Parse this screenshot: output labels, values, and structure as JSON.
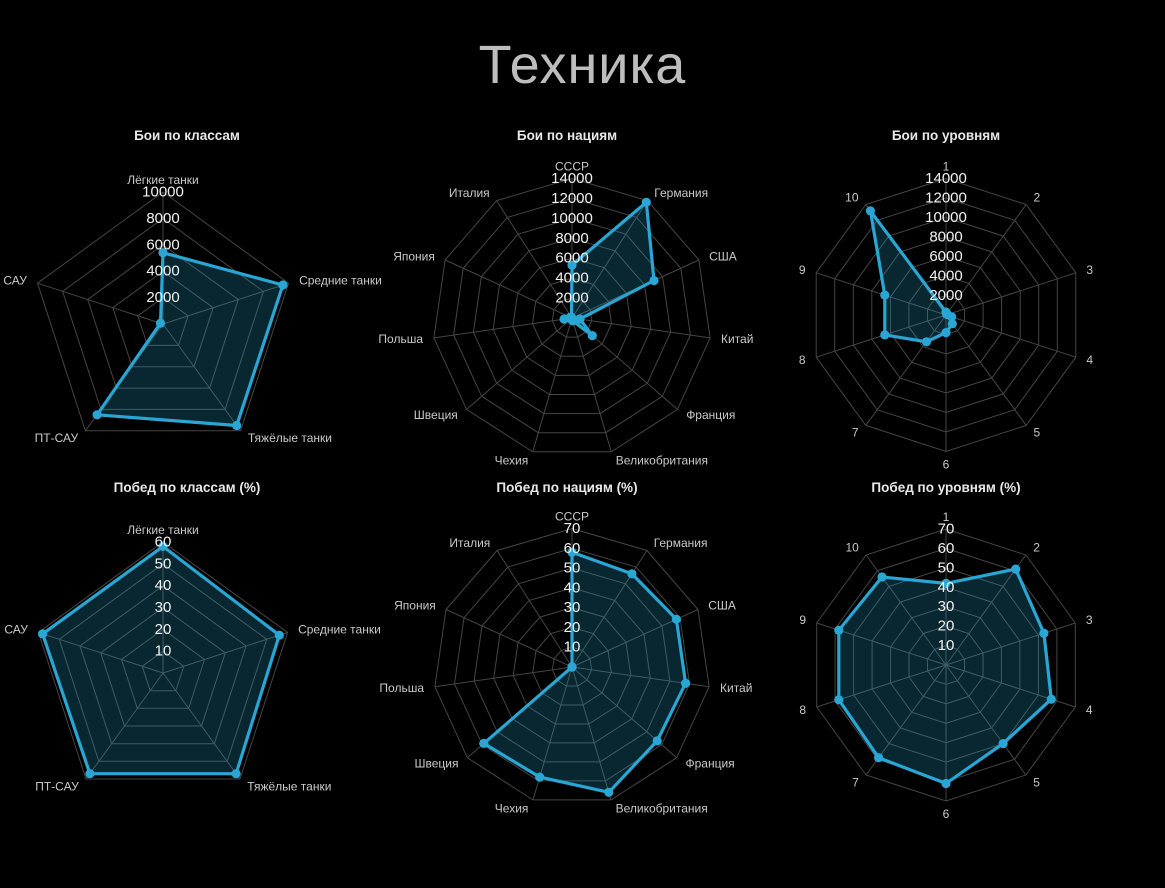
{
  "title": "Техника",
  "colors": {
    "background": "#000000",
    "accent_line": "#29a6d4",
    "accent_fill": "rgba(41,167,212,0.23)",
    "grid": "#454545",
    "tick_text": "#f2f2f2",
    "label_text": "#c9c9c9",
    "chart_title_text": "#e8e8e8",
    "page_title_text": "#bdbdbd"
  },
  "chart_data": [
    {
      "type": "radar",
      "title": "Бои по классам",
      "categories": [
        "Лёгкие танки",
        "Средние танки",
        "Тяжёлые танки",
        "ПТ-САУ",
        "САУ"
      ],
      "values": [
        5400,
        9550,
        9500,
        8500,
        200
      ],
      "rmin": 0,
      "rmax": 10000,
      "tick_step": 2000,
      "ticks": [
        "2000",
        "4000",
        "6000",
        "8000",
        "10000"
      ],
      "grid": true,
      "legend": "none"
    },
    {
      "type": "radar",
      "title": "Бои по нациям",
      "categories": [
        "СССР",
        "Германия",
        "США",
        "Китай",
        "Франция",
        "Великобритания",
        "Чехия",
        "Швеция",
        "Польша",
        "Япония",
        "Италия"
      ],
      "values": [
        5300,
        13800,
        9050,
        800,
        2700,
        300,
        150,
        150,
        800,
        200,
        100
      ],
      "rmin": 0,
      "rmax": 14000,
      "tick_step": 2000,
      "ticks": [
        "2000",
        "4000",
        "6000",
        "8000",
        "10000",
        "12000",
        "14000"
      ],
      "grid": true,
      "legend": "none"
    },
    {
      "type": "radar",
      "title": "Бои по уровням",
      "categories": [
        "1",
        "2",
        "3",
        "4",
        "5",
        "6",
        "7",
        "8",
        "9",
        "10"
      ],
      "values": [
        300,
        100,
        150,
        600,
        1100,
        1800,
        3400,
        6600,
        6600,
        13200
      ],
      "rmin": 0,
      "rmax": 14000,
      "tick_step": 2000,
      "ticks": [
        "2000",
        "4000",
        "6000",
        "8000",
        "10000",
        "12000",
        "14000"
      ],
      "grid": true,
      "legend": "none"
    },
    {
      "type": "radar",
      "title": "Побед по классам (%)",
      "categories": [
        "Лёгкие танки",
        "Средние танки",
        "Тяжёлые танки",
        "ПТ-САУ",
        "САУ"
      ],
      "values": [
        58,
        56,
        57,
        57,
        58
      ],
      "rmin": 0,
      "rmax": 60,
      "tick_step": 10,
      "ticks": [
        "10",
        "20",
        "30",
        "40",
        "50",
        "60"
      ],
      "grid": true,
      "legend": "none"
    },
    {
      "type": "radar",
      "title": "Побед по нациям (%)",
      "categories": [
        "СССР",
        "Германия",
        "США",
        "Китай",
        "Франция",
        "Великобритания",
        "Чехия",
        "Швеция",
        "Польша",
        "Япония",
        "Италия"
      ],
      "values": [
        58,
        56,
        58,
        58,
        57,
        66,
        58,
        59,
        0,
        0,
        0
      ],
      "rmin": 0,
      "rmax": 70,
      "tick_step": 10,
      "ticks": [
        "10",
        "20",
        "30",
        "40",
        "50",
        "60",
        "70"
      ],
      "grid": true,
      "legend": "none"
    },
    {
      "type": "radar",
      "title": "Побед по уровням (%)",
      "categories": [
        "1",
        "2",
        "3",
        "4",
        "5",
        "6",
        "7",
        "8",
        "9",
        "10"
      ],
      "values": [
        42,
        61,
        53,
        57,
        50,
        61,
        59,
        58,
        58,
        56
      ],
      "rmin": 0,
      "rmax": 70,
      "tick_step": 10,
      "ticks": [
        "10",
        "20",
        "30",
        "40",
        "50",
        "60",
        "70"
      ],
      "grid": true,
      "legend": "none"
    }
  ]
}
